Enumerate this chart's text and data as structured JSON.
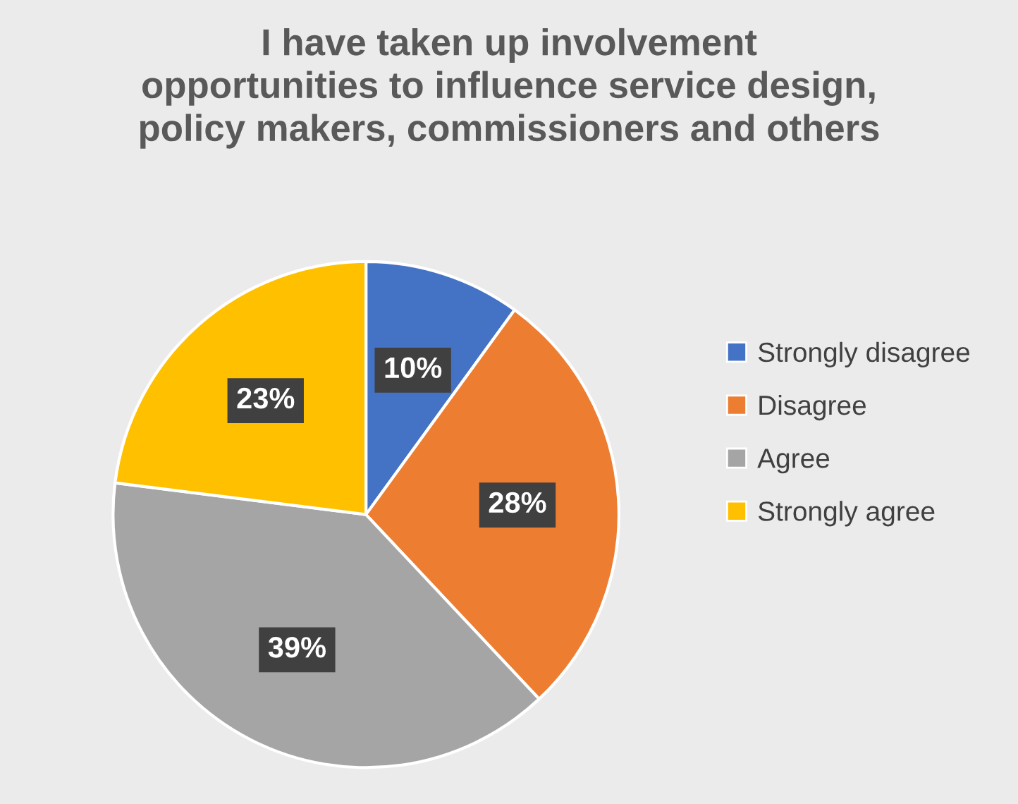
{
  "chart_data": {
    "type": "pie",
    "title": "I have taken up involvement\nopportunities to influence service design,\npolicy makers, commissioners and others",
    "categories": [
      "Strongly disagree",
      "Disagree",
      "Agree",
      "Strongly agree"
    ],
    "values": [
      10,
      28,
      39,
      23
    ],
    "value_labels": [
      "10%",
      "28%",
      "39%",
      "23%"
    ],
    "colors": [
      "#4472c4",
      "#ed7d31",
      "#a5a5a5",
      "#ffc000"
    ],
    "legend": "right"
  }
}
